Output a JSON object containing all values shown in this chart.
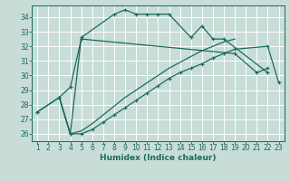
{
  "title": "",
  "xlabel": "Humidex (Indice chaleur)",
  "bg_color": "#c8ddd8",
  "grid_color": "#ffffff",
  "line_color": "#1a6b5a",
  "xlim": [
    0.5,
    23.5
  ],
  "ylim": [
    25.5,
    34.8
  ],
  "xticks": [
    1,
    2,
    3,
    4,
    5,
    6,
    7,
    8,
    9,
    10,
    11,
    12,
    13,
    14,
    15,
    16,
    17,
    18,
    19,
    20,
    21,
    22,
    23
  ],
  "yticks": [
    26,
    27,
    28,
    29,
    30,
    31,
    32,
    33,
    34
  ],
  "s1x": [
    1,
    3,
    4,
    5,
    8,
    9,
    10,
    11,
    12,
    13,
    15,
    16,
    17,
    18,
    22
  ],
  "s1y": [
    27.5,
    28.5,
    26.0,
    32.6,
    34.2,
    34.5,
    34.2,
    34.2,
    34.2,
    34.2,
    32.6,
    33.4,
    32.5,
    32.5,
    30.2
  ],
  "s2x": [
    1,
    3,
    4,
    5,
    19,
    21,
    22
  ],
  "s2y": [
    27.5,
    28.5,
    29.2,
    32.5,
    31.5,
    30.2,
    30.5
  ],
  "s3x": [
    3,
    4,
    5,
    6,
    7,
    8,
    9,
    10,
    11,
    12,
    13,
    14,
    15,
    16,
    17,
    18,
    19,
    22,
    23
  ],
  "s3y": [
    28.5,
    26.0,
    26.0,
    26.3,
    26.8,
    27.3,
    27.8,
    28.3,
    28.8,
    29.3,
    29.8,
    30.2,
    30.5,
    30.8,
    31.2,
    31.5,
    31.8,
    32.0,
    29.5
  ],
  "s4x": [
    3,
    4,
    5,
    6,
    7,
    8,
    9,
    10,
    11,
    12,
    13,
    14,
    15,
    16,
    17,
    18,
    19
  ],
  "s4y": [
    28.5,
    26.0,
    26.2,
    26.7,
    27.3,
    27.9,
    28.5,
    29.0,
    29.5,
    30.0,
    30.5,
    30.9,
    31.3,
    31.7,
    32.0,
    32.3,
    32.5
  ],
  "lw": 0.9,
  "markersize": 2.5,
  "tick_fontsize": 5.5,
  "xlabel_fontsize": 6.5
}
